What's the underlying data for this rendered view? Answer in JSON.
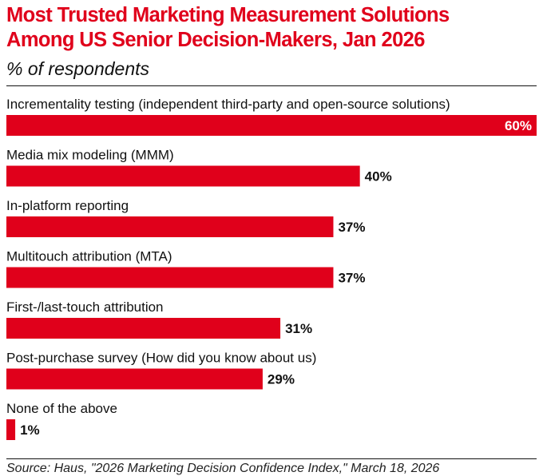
{
  "header": {
    "title_line1": "Most Trusted Marketing Measurement Solutions",
    "title_line2": "Among US Senior Decision-Makers, Jan 2026",
    "subtitle": "% of respondents"
  },
  "footer": {
    "source": "Source: Haus, \"2026 Marketing Decision Confidence Index,\" March 18, 2026"
  },
  "colors": {
    "accent": "#e0001b",
    "bar": "#e0001b",
    "text": "#111111"
  },
  "chart_data": {
    "type": "bar",
    "orientation": "horizontal",
    "title": "Most Trusted Marketing Measurement Solutions Among US Senior Decision-Makers, Jan 2026",
    "subtitle": "% of respondents",
    "xlabel": "",
    "ylabel": "",
    "xlim": [
      0,
      60
    ],
    "grid": false,
    "legend": "none",
    "categories": [
      "Incrementality testing (independent third-party and open-source solutions)",
      "Media mix modeling (MMM)",
      "In-platform reporting",
      "Multitouch attribution (MTA)",
      "First-/last-touch attribution",
      "Post-purchase survey (How did you know about us)",
      "None of the above"
    ],
    "values": [
      60,
      40,
      37,
      37,
      31,
      29,
      1
    ],
    "value_labels": [
      "60%",
      "40%",
      "37%",
      "37%",
      "31%",
      "29%",
      "1%"
    ]
  }
}
